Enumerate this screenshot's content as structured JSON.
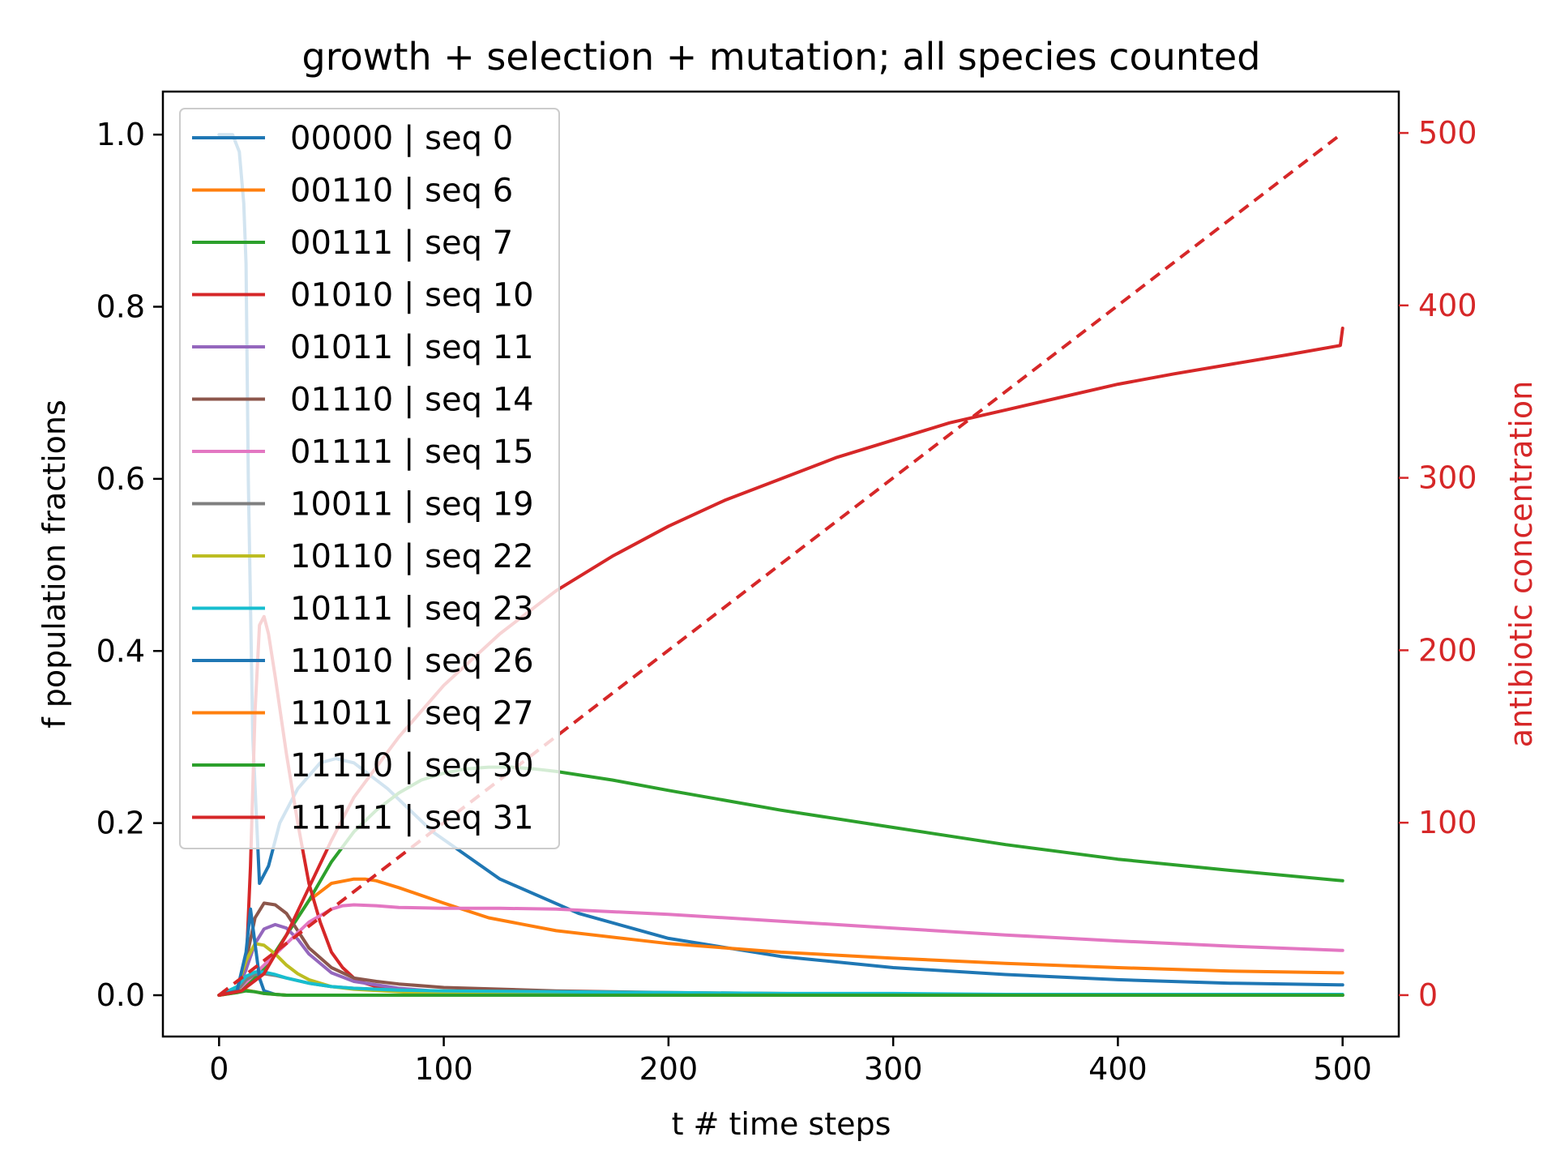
{
  "chart_data": {
    "type": "line",
    "title": "growth + selection + mutation; all species counted",
    "xlabel": "t # time steps",
    "ylabel": "f population fractions",
    "y2label": "antibiotic concentration",
    "xlim": [
      -25,
      525
    ],
    "ylim": [
      -0.048,
      1.05
    ],
    "y2lim": [
      -24,
      524
    ],
    "xticks": [
      0,
      100,
      200,
      300,
      400,
      500
    ],
    "xtick_labels": [
      "0",
      "100",
      "200",
      "300",
      "400",
      "500"
    ],
    "yticks": [
      0.0,
      0.2,
      0.4,
      0.6,
      0.8,
      1.0
    ],
    "ytick_labels": [
      "0.0",
      "0.2",
      "0.4",
      "0.6",
      "0.8",
      "1.0"
    ],
    "y2ticks": [
      0,
      100,
      200,
      300,
      400,
      500
    ],
    "y2tick_labels": [
      "0",
      "100",
      "200",
      "300",
      "400",
      "500"
    ],
    "grid": false,
    "legend_position": "upper-left",
    "right_axis_color": "#d62728",
    "series": [
      {
        "name": "00000 | seq 0",
        "color": "#1f77b4",
        "axis": "left",
        "x": [
          0,
          6,
          9,
          11,
          12,
          13,
          15,
          18,
          22,
          27,
          35,
          45,
          52,
          60,
          75,
          95,
          125,
          160,
          200,
          250,
          300,
          350,
          400,
          450,
          500
        ],
        "y": [
          1.0,
          1.0,
          0.98,
          0.92,
          0.85,
          0.6,
          0.3,
          0.13,
          0.15,
          0.2,
          0.24,
          0.27,
          0.275,
          0.27,
          0.24,
          0.19,
          0.135,
          0.095,
          0.066,
          0.045,
          0.032,
          0.024,
          0.018,
          0.014,
          0.012
        ]
      },
      {
        "name": "00110 | seq 6",
        "color": "#ff7f0e",
        "axis": "left",
        "x": [
          0,
          10,
          20,
          30,
          40,
          50,
          60,
          65,
          70,
          80,
          100,
          120,
          150,
          200,
          250,
          300,
          350,
          400,
          450,
          500
        ],
        "y": [
          0.0,
          0.005,
          0.03,
          0.07,
          0.11,
          0.13,
          0.135,
          0.135,
          0.133,
          0.125,
          0.107,
          0.09,
          0.075,
          0.06,
          0.05,
          0.043,
          0.037,
          0.032,
          0.028,
          0.026
        ]
      },
      {
        "name": "00111 | seq 7",
        "color": "#2ca02c",
        "axis": "left",
        "x": [
          0,
          10,
          20,
          30,
          40,
          50,
          60,
          70,
          80,
          90,
          100,
          110,
          120,
          130,
          140,
          150,
          175,
          200,
          250,
          300,
          350,
          400,
          450,
          500
        ],
        "y": [
          0.0,
          0.005,
          0.03,
          0.07,
          0.11,
          0.155,
          0.19,
          0.215,
          0.235,
          0.25,
          0.258,
          0.263,
          0.265,
          0.265,
          0.263,
          0.26,
          0.25,
          0.238,
          0.215,
          0.195,
          0.175,
          0.158,
          0.145,
          0.133
        ]
      },
      {
        "name": "01010 | seq 10",
        "color": "#d62728",
        "axis": "left",
        "x": [
          0,
          8,
          12,
          14,
          16,
          18,
          20,
          22,
          25,
          30,
          35,
          40,
          45,
          50,
          55,
          60,
          65,
          70,
          80,
          100,
          150,
          200,
          300,
          400,
          500
        ],
        "y": [
          0.0,
          0.005,
          0.03,
          0.15,
          0.33,
          0.43,
          0.44,
          0.42,
          0.37,
          0.28,
          0.2,
          0.13,
          0.085,
          0.05,
          0.032,
          0.02,
          0.014,
          0.01,
          0.006,
          0.003,
          0.001,
          0.0,
          0.0,
          0.0,
          0.0
        ]
      },
      {
        "name": "01011 | seq 11",
        "color": "#9467bd",
        "axis": "left",
        "x": [
          0,
          8,
          12,
          16,
          20,
          25,
          30,
          35,
          40,
          50,
          60,
          80,
          100,
          150,
          200,
          300,
          400,
          500
        ],
        "y": [
          0.0,
          0.005,
          0.03,
          0.06,
          0.077,
          0.082,
          0.078,
          0.065,
          0.048,
          0.026,
          0.016,
          0.008,
          0.004,
          0.002,
          0.001,
          0.0,
          0.0,
          0.0
        ]
      },
      {
        "name": "01110 | seq 14",
        "color": "#8c564b",
        "axis": "left",
        "x": [
          0,
          8,
          12,
          16,
          20,
          25,
          30,
          35,
          40,
          50,
          60,
          70,
          80,
          100,
          150,
          200,
          300,
          400,
          500
        ],
        "y": [
          0.0,
          0.005,
          0.04,
          0.09,
          0.107,
          0.105,
          0.095,
          0.075,
          0.055,
          0.032,
          0.02,
          0.016,
          0.013,
          0.009,
          0.005,
          0.003,
          0.001,
          0.0,
          0.0
        ]
      },
      {
        "name": "01111 | seq 15",
        "color": "#e377c2",
        "axis": "left",
        "x": [
          0,
          10,
          20,
          30,
          40,
          50,
          55,
          60,
          70,
          80,
          100,
          125,
          150,
          200,
          250,
          300,
          350,
          400,
          450,
          500
        ],
        "y": [
          0.0,
          0.01,
          0.035,
          0.06,
          0.085,
          0.1,
          0.104,
          0.105,
          0.104,
          0.102,
          0.101,
          0.101,
          0.1,
          0.094,
          0.086,
          0.078,
          0.07,
          0.063,
          0.057,
          0.052
        ]
      },
      {
        "name": "10011 | seq 19",
        "color": "#7f7f7f",
        "axis": "left",
        "x": [
          0,
          8,
          12,
          16,
          20,
          25,
          30,
          40,
          50,
          60,
          80,
          100,
          150,
          200,
          300,
          400,
          500
        ],
        "y": [
          0.0,
          0.005,
          0.018,
          0.024,
          0.025,
          0.023,
          0.02,
          0.014,
          0.01,
          0.008,
          0.006,
          0.004,
          0.002,
          0.001,
          0.0,
          0.0,
          0.0
        ]
      },
      {
        "name": "10110 | seq 22",
        "color": "#bcbd22",
        "axis": "left",
        "x": [
          0,
          8,
          12,
          16,
          20,
          25,
          30,
          35,
          40,
          50,
          60,
          80,
          100,
          150,
          200,
          300,
          400,
          500
        ],
        "y": [
          0.0,
          0.008,
          0.04,
          0.06,
          0.058,
          0.048,
          0.035,
          0.025,
          0.018,
          0.01,
          0.007,
          0.004,
          0.002,
          0.001,
          0.0,
          0.0,
          0.0,
          0.0
        ]
      },
      {
        "name": "10111 | seq 23",
        "color": "#17becf",
        "axis": "left",
        "x": [
          0,
          8,
          12,
          16,
          20,
          25,
          30,
          40,
          50,
          60,
          80,
          100,
          150,
          200,
          250,
          300,
          350,
          400,
          500
        ],
        "y": [
          0.0,
          0.01,
          0.022,
          0.027,
          0.027,
          0.024,
          0.02,
          0.014,
          0.01,
          0.008,
          0.006,
          0.005,
          0.004,
          0.003,
          0.002,
          0.002,
          0.001,
          0.001,
          0.001
        ]
      },
      {
        "name": "11010 | seq 26",
        "color": "#1f77b4",
        "axis": "left",
        "x": [
          0,
          8,
          12,
          14,
          16,
          18,
          20,
          25,
          30,
          40,
          50,
          80,
          100,
          200,
          300,
          400,
          500
        ],
        "y": [
          0.0,
          0.005,
          0.05,
          0.1,
          0.06,
          0.02,
          0.005,
          0.001,
          0.0,
          0.0,
          0.0,
          0.0,
          0.0,
          0.0,
          0.0,
          0.0,
          0.0
        ]
      },
      {
        "name": "11011 | seq 27",
        "color": "#ff7f0e",
        "axis": "left",
        "x": [
          0,
          8,
          12,
          16,
          20,
          25,
          30,
          40,
          60,
          100,
          200,
          300,
          400,
          500
        ],
        "y": [
          0.0,
          0.003,
          0.006,
          0.004,
          0.002,
          0.001,
          0.0,
          0.0,
          0.0,
          0.0,
          0.0,
          0.0,
          0.0,
          0.0
        ]
      },
      {
        "name": "11110 | seq 30",
        "color": "#2ca02c",
        "axis": "left",
        "x": [
          0,
          8,
          12,
          16,
          20,
          25,
          30,
          40,
          60,
          100,
          200,
          300,
          400,
          500
        ],
        "y": [
          0.0,
          0.003,
          0.005,
          0.004,
          0.002,
          0.001,
          0.0,
          0.0,
          0.0,
          0.0,
          0.0,
          0.0,
          0.0,
          0.0
        ]
      },
      {
        "name": "11111 | seq 31",
        "color": "#d62728",
        "axis": "left",
        "x": [
          0,
          10,
          20,
          30,
          40,
          50,
          60,
          70,
          80,
          100,
          125,
          150,
          175,
          200,
          225,
          250,
          275,
          300,
          325,
          350,
          375,
          400,
          425,
          450,
          475,
          499,
          500
        ],
        "y": [
          0.0,
          0.005,
          0.025,
          0.07,
          0.125,
          0.18,
          0.23,
          0.265,
          0.3,
          0.36,
          0.42,
          0.47,
          0.51,
          0.545,
          0.575,
          0.6,
          0.625,
          0.645,
          0.665,
          0.68,
          0.695,
          0.71,
          0.722,
          0.733,
          0.744,
          0.755,
          0.775
        ]
      },
      {
        "name": "",
        "color": "#d62728",
        "axis": "right",
        "dashed": true,
        "x": [
          0,
          500
        ],
        "y": [
          0,
          500
        ]
      }
    ]
  }
}
